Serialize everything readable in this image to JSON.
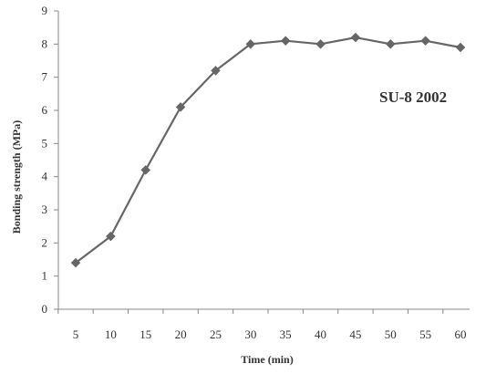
{
  "chart_data": {
    "type": "line",
    "x": [
      5,
      10,
      15,
      20,
      25,
      30,
      35,
      40,
      45,
      50,
      55,
      60
    ],
    "x_tick_labels": [
      "5",
      "10",
      "15",
      "20",
      "25",
      "30",
      "35",
      "40",
      "45",
      "50",
      "55",
      "60"
    ],
    "y_tick_labels": [
      "0",
      "1",
      "2",
      "3",
      "4",
      "5",
      "6",
      "7",
      "8",
      "9"
    ],
    "series": [
      {
        "values": [
          1.4,
          2.2,
          4.2,
          6.1,
          7.2,
          8.0,
          8.1,
          8.0,
          8.2,
          8.0,
          8.1,
          7.9
        ],
        "color": "#666666",
        "marker": "diamond"
      }
    ],
    "xlabel": "Time (min)",
    "ylabel": "Bonding strength (MPa)",
    "ylim": [
      0,
      9
    ],
    "annotation": "SU-8 2002",
    "grid": false,
    "legend": "none"
  }
}
